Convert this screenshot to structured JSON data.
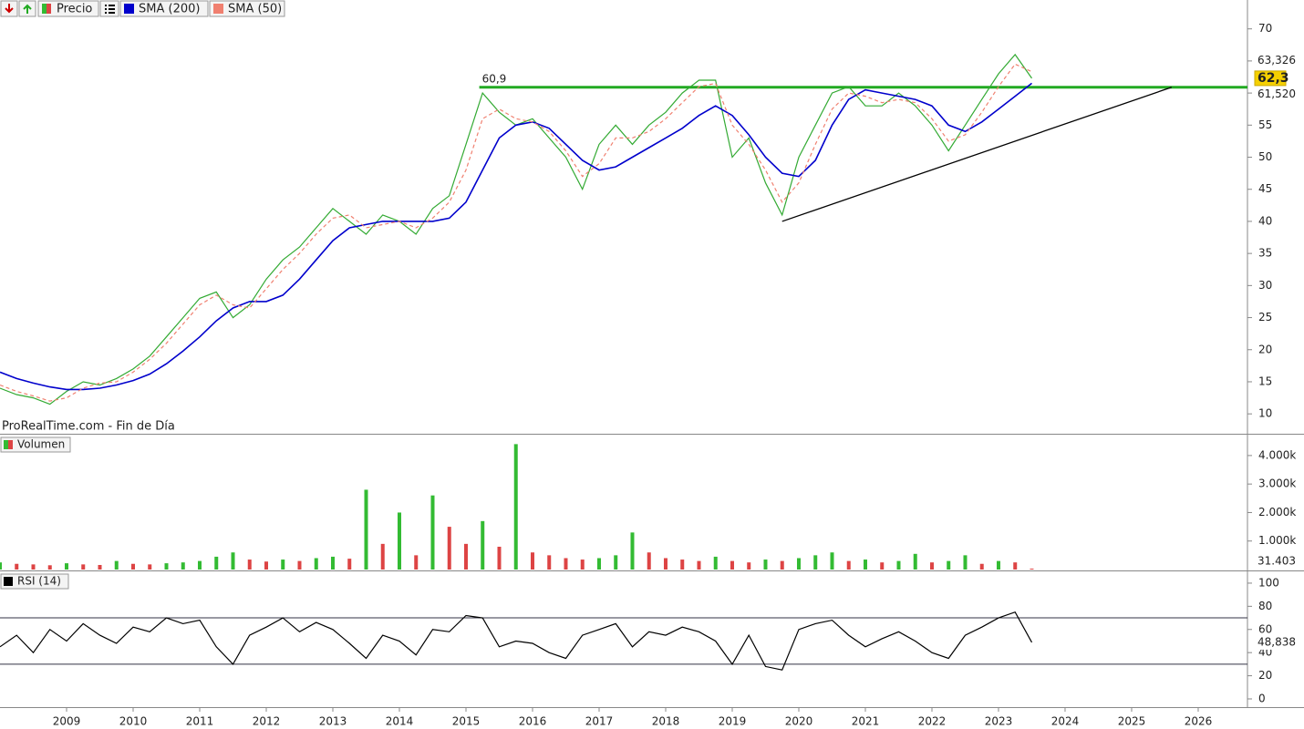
{
  "chart_data": [
    {
      "type": "line",
      "source": "ProRealTime.com - Fin de Día",
      "x": [
        2008,
        2008.25,
        2008.5,
        2008.75,
        2009,
        2009.25,
        2009.5,
        2009.75,
        2010,
        2010.25,
        2010.5,
        2010.75,
        2011,
        2011.25,
        2011.5,
        2011.75,
        2012,
        2012.25,
        2012.5,
        2012.75,
        2013,
        2013.25,
        2013.5,
        2013.75,
        2014,
        2014.25,
        2014.5,
        2014.75,
        2015,
        2015.25,
        2015.5,
        2015.75,
        2016,
        2016.25,
        2016.5,
        2016.75,
        2017,
        2017.25,
        2017.5,
        2017.75,
        2018,
        2018.25,
        2018.5,
        2018.75,
        2019,
        2019.25,
        2019.5,
        2019.75,
        2020,
        2020.25,
        2020.5,
        2020.75,
        2021,
        2021.25,
        2021.5,
        2021.75,
        2022,
        2022.25,
        2022.5,
        2022.75,
        2023,
        2023.25,
        2023.5
      ],
      "series": [
        {
          "name": "Precio",
          "color": "#33aa33",
          "dash": false,
          "last_label": "62,3",
          "values": [
            14,
            13,
            12.5,
            11.5,
            13.5,
            15,
            14.5,
            15.5,
            17,
            19,
            22,
            25,
            28,
            29,
            25,
            27,
            31,
            34,
            36,
            39,
            42,
            40,
            38,
            41,
            40,
            38,
            42,
            44,
            52,
            60,
            57,
            55,
            56,
            53,
            50,
            45,
            52,
            55,
            52,
            55,
            57,
            60,
            62,
            62,
            50,
            53,
            46,
            41,
            50,
            55,
            60,
            61,
            58,
            58,
            60,
            58,
            55,
            51,
            55,
            59,
            63,
            66,
            62.3
          ]
        },
        {
          "name": "SMA (200)",
          "color": "#0000cc",
          "dash": false,
          "last_label": "61,520",
          "values": [
            16.5,
            15.5,
            14.8,
            14.2,
            13.8,
            13.8,
            14,
            14.5,
            15.2,
            16.2,
            17.8,
            19.8,
            22,
            24.5,
            26.5,
            27.5,
            27.5,
            28.5,
            31,
            34,
            37,
            39,
            39.5,
            40,
            40,
            40,
            40,
            40.5,
            43,
            48,
            53,
            55,
            55.5,
            54.5,
            52,
            49.5,
            48,
            48.5,
            50,
            51.5,
            53,
            54.5,
            56.5,
            58,
            56.5,
            53.5,
            50,
            47.5,
            47,
            49.5,
            55,
            59,
            60.5,
            60,
            59.5,
            59,
            58,
            55,
            54,
            55.5,
            57.5,
            59.5,
            61.52
          ]
        },
        {
          "name": "SMA (50)",
          "color": "#f08070",
          "dash": true,
          "last_label": "63,326",
          "values": [
            14.5,
            13.5,
            12.8,
            12,
            12.5,
            14,
            14.8,
            15,
            16.5,
            18.5,
            21,
            24,
            27,
            28.5,
            27,
            26.5,
            29.5,
            32.5,
            35,
            38,
            40.5,
            41,
            39,
            39.5,
            40,
            39,
            40.5,
            43,
            48,
            56,
            57.5,
            56,
            55.5,
            54,
            51,
            47,
            49,
            53,
            53,
            54,
            56,
            58.5,
            61,
            61.5,
            55,
            52,
            48,
            43,
            46,
            52,
            57.5,
            60,
            59.5,
            58.5,
            59,
            58.5,
            56,
            52.5,
            53.5,
            57,
            61,
            64.5,
            63.326
          ]
        }
      ],
      "xlim": [
        2008,
        2026.74
      ],
      "ylim": [
        6.9,
        74.5
      ],
      "yticks": [
        10,
        15,
        20,
        25,
        30,
        35,
        40,
        45,
        50,
        55,
        60,
        65,
        70
      ],
      "annotations": [
        {
          "value": 60.9,
          "label": "60,9",
          "x": 2015.2,
          "color": "#22aa22"
        }
      ],
      "trendline": {
        "x": [
          2019.75,
          2025.6
        ],
        "y": [
          40,
          60.9
        ],
        "color": "#000000"
      }
    },
    {
      "type": "bar",
      "title": "Volumen",
      "x": [
        2008,
        2008.25,
        2008.5,
        2008.75,
        2009,
        2009.25,
        2009.5,
        2009.75,
        2010,
        2010.25,
        2010.5,
        2010.75,
        2011,
        2011.25,
        2011.5,
        2011.75,
        2012,
        2012.25,
        2012.5,
        2012.75,
        2013,
        2013.25,
        2013.5,
        2013.75,
        2014,
        2014.25,
        2014.5,
        2014.75,
        2015,
        2015.25,
        2015.5,
        2015.75,
        2016,
        2016.25,
        2016.5,
        2016.75,
        2017,
        2017.25,
        2017.5,
        2017.75,
        2018,
        2018.25,
        2018.5,
        2018.75,
        2019,
        2019.25,
        2019.5,
        2019.75,
        2020,
        2020.25,
        2020.5,
        2020.75,
        2021,
        2021.25,
        2021.5,
        2021.75,
        2022,
        2022.25,
        2022.5,
        2022.75,
        2023,
        2023.25,
        2023.5
      ],
      "values": [
        250,
        200,
        180,
        150,
        220,
        180,
        160,
        300,
        200,
        180,
        220,
        250,
        300,
        450,
        600,
        350,
        280,
        350,
        300,
        400,
        450,
        380,
        2800,
        900,
        2000,
        500,
        2600,
        1500,
        900,
        1700,
        800,
        4400,
        600,
        500,
        400,
        350,
        400,
        500,
        1300,
        600,
        400,
        350,
        300,
        450,
        300,
        250,
        350,
        300,
        400,
        500,
        600,
        300,
        350,
        250,
        300,
        550,
        250,
        300,
        500,
        200,
        300,
        250,
        31.403
      ],
      "colors": [
        "#33bb33",
        "#dd4444"
      ],
      "last_label": "31.403",
      "xlim": [
        2008,
        2026.74
      ],
      "ylim": [
        0,
        4700
      ],
      "yticks": [
        {
          "value": 1000,
          "label": "1.000k"
        },
        {
          "value": 2000,
          "label": "2.000k"
        },
        {
          "value": 3000,
          "label": "3.000k"
        },
        {
          "value": 4000,
          "label": "4.000k"
        }
      ]
    },
    {
      "type": "line",
      "title": "RSI (14)",
      "x": [
        2008,
        2008.25,
        2008.5,
        2008.75,
        2009,
        2009.25,
        2009.5,
        2009.75,
        2010,
        2010.25,
        2010.5,
        2010.75,
        2011,
        2011.25,
        2011.5,
        2011.75,
        2012,
        2012.25,
        2012.5,
        2012.75,
        2013,
        2013.25,
        2013.5,
        2013.75,
        2014,
        2014.25,
        2014.5,
        2014.75,
        2015,
        2015.25,
        2015.5,
        2015.75,
        2016,
        2016.25,
        2016.5,
        2016.75,
        2017,
        2017.25,
        2017.5,
        2017.75,
        2018,
        2018.25,
        2018.5,
        2018.75,
        2019,
        2019.25,
        2019.5,
        2019.75,
        2020,
        2020.25,
        2020.5,
        2020.75,
        2021,
        2021.25,
        2021.5,
        2021.75,
        2022,
        2022.25,
        2022.5,
        2022.75,
        2023,
        2023.25,
        2023.5
      ],
      "series": [
        {
          "name": "RSI (14)",
          "color": "#000000",
          "dash": false,
          "last_label": "48,838",
          "values": [
            45,
            55,
            40,
            60,
            50,
            65,
            55,
            48,
            62,
            58,
            70,
            65,
            68,
            45,
            30,
            55,
            62,
            70,
            58,
            66,
            60,
            48,
            35,
            55,
            50,
            38,
            60,
            58,
            72,
            70,
            45,
            50,
            48,
            40,
            35,
            55,
            60,
            65,
            45,
            58,
            55,
            62,
            58,
            50,
            30,
            55,
            28,
            25,
            60,
            65,
            68,
            55,
            45,
            52,
            58,
            50,
            40,
            35,
            55,
            62,
            70,
            75,
            48.838
          ]
        }
      ],
      "levels": [
        30,
        70
      ],
      "xlim": [
        2008,
        2026.74
      ],
      "ylim": [
        -7.1,
        109.4
      ],
      "yticks": [
        0,
        20,
        40,
        60,
        80,
        100
      ],
      "xticks": [
        2009,
        2010,
        2011,
        2012,
        2013,
        2014,
        2015,
        2016,
        2017,
        2018,
        2019,
        2020,
        2021,
        2022,
        2023,
        2024,
        2025,
        2026
      ]
    }
  ]
}
